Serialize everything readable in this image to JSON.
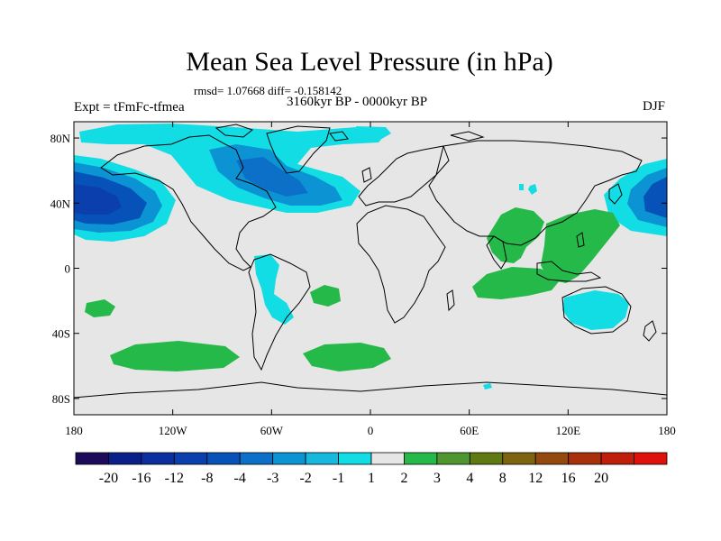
{
  "header": {
    "title": "Mean Sea Level Pressure (in hPa)",
    "stats": "rmsd= 1.07668 diff= -0.158142",
    "expt": "Expt = tFmFc-tfmea",
    "period": "3160kyr BP - 0000kyr BP",
    "season": "DJF"
  },
  "axes": {
    "x_ticks": [
      "180",
      "120W",
      "60W",
      "0",
      "60E",
      "120E",
      "180"
    ],
    "y_ticks": [
      "80N",
      "40N",
      "0",
      "40S",
      "80S"
    ]
  },
  "colorbar": {
    "labels": [
      "-20",
      "-16",
      "-12",
      "-8",
      "-4",
      "-3",
      "-2",
      "-1",
      "1",
      "2",
      "3",
      "4",
      "8",
      "12",
      "16",
      "20"
    ],
    "colors": [
      "#1e0a5a",
      "#0a1f8a",
      "#0b2f9e",
      "#0a3fae",
      "#0652b8",
      "#0c6fc8",
      "#0b93d4",
      "#16b8de",
      "#13dde4",
      "#e6e6e6",
      "#25b94a",
      "#4f9630",
      "#5f7a10",
      "#7d6410",
      "#944a0c",
      "#a8300a",
      "#c01d0a",
      "#e0100a"
    ]
  },
  "colors": {
    "ocean_background": "#e6e6e6",
    "negative_light": "#13dde4",
    "negative_mid": "#16b8de",
    "negative_dark": "#0b93d4",
    "negative_deeper": "#0c6fc8",
    "negative_deep": "#0652b8",
    "positive_light": "#25b94a"
  }
}
